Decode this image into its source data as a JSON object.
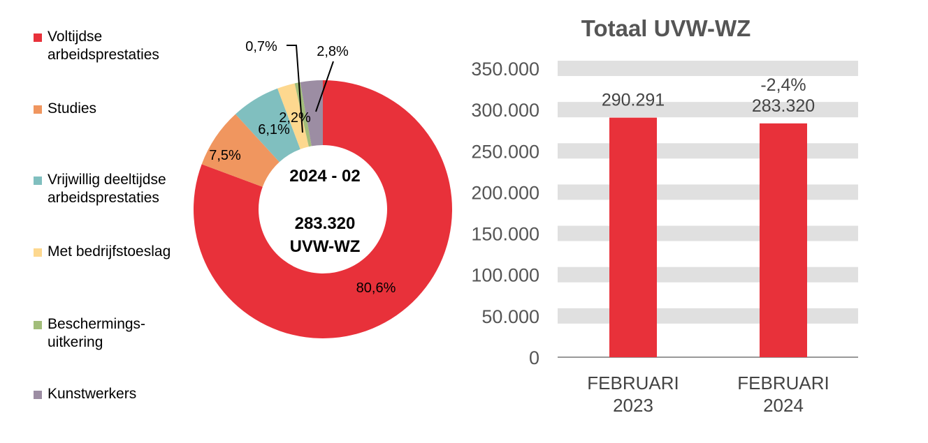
{
  "chart_data": [
    {
      "type": "pie",
      "donut": true,
      "center_label": {
        "line1": "2024 - 02",
        "line2": "283.320",
        "line3": "UVW-WZ"
      },
      "categories": [
        "Voltijdse arbeidsprestaties",
        "Studies",
        "Vrijwillig deeltijdse arbeidsprestaties",
        "Met bedrijfstoeslag",
        "Beschermings-uitkering",
        "Kunstwerkers"
      ],
      "legend_lines": [
        [
          "Voltijdse",
          "arbeidsprestaties"
        ],
        [
          "Studies"
        ],
        [
          "Vrijwillig deeltijdse",
          "arbeidsprestaties"
        ],
        [
          "Met bedrijfstoeslag"
        ],
        [
          "Beschermings-",
          "uitkering"
        ],
        [
          "Kunstwerkers"
        ]
      ],
      "values": [
        80.6,
        7.5,
        6.1,
        2.2,
        0.7,
        2.8
      ],
      "labels": [
        "80,6%",
        "7,5%",
        "6,1%",
        "2,2%",
        "0,7%",
        "2,8%"
      ],
      "colors": [
        "#e8313a",
        "#f0965f",
        "#80bfbf",
        "#fdd88f",
        "#a2bd7a",
        "#9c8da3"
      ],
      "legend": "left"
    },
    {
      "type": "bar",
      "title": "Totaal UVW-WZ",
      "categories": [
        [
          "FEBRUARI",
          "2023"
        ],
        [
          "FEBRUARI",
          "2024"
        ]
      ],
      "values": [
        290291,
        283320
      ],
      "data_labels": [
        "290.291",
        "283.320"
      ],
      "annotations": [
        "",
        "-2,4%"
      ],
      "ylim": [
        0,
        350000
      ],
      "yticks": [
        "0",
        "50.000",
        "100.000",
        "150.000",
        "200.000",
        "250.000",
        "300.000",
        "350.000"
      ],
      "grid": "bands",
      "color": "#e8313a"
    }
  ]
}
